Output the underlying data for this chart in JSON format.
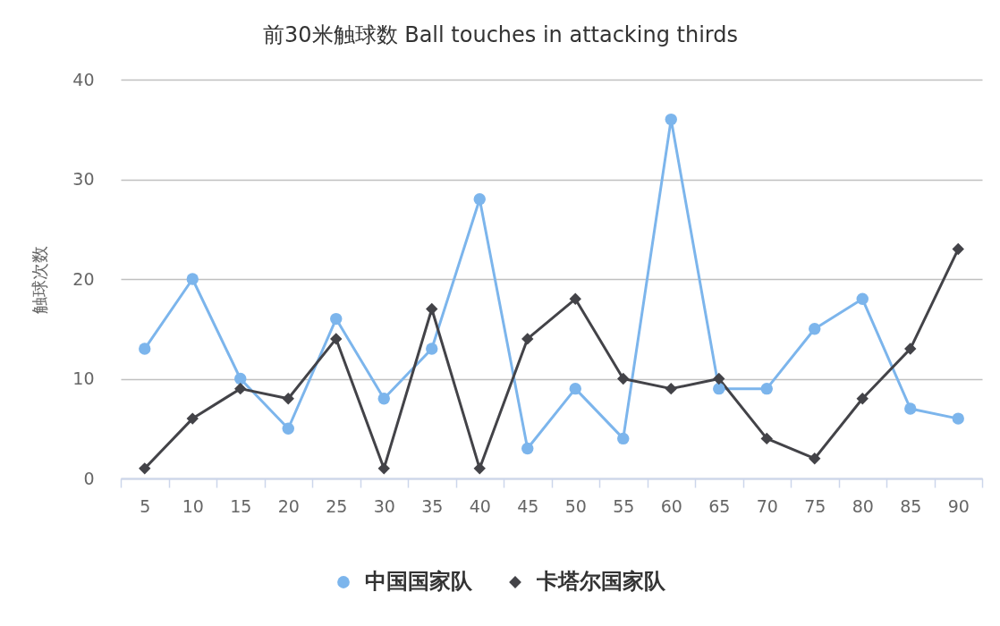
{
  "chart_data": {
    "type": "line",
    "title": "前30米触球数 Ball touches in attacking thirds",
    "ylabel": "触球次数",
    "categories": [
      "5",
      "10",
      "15",
      "20",
      "25",
      "30",
      "35",
      "40",
      "45",
      "50",
      "55",
      "60",
      "65",
      "70",
      "75",
      "80",
      "85",
      "90"
    ],
    "series": [
      {
        "name": "中国国家队",
        "color": "#7cb5ec",
        "marker": "circle",
        "values": [
          13,
          20,
          10,
          5,
          16,
          8,
          13,
          28,
          3,
          9,
          4,
          36,
          9,
          9,
          15,
          18,
          7,
          6
        ]
      },
      {
        "name": "卡塔尔国家队",
        "color": "#434348",
        "marker": "diamond",
        "values": [
          1,
          6,
          9,
          8,
          14,
          1,
          17,
          1,
          14,
          18,
          10,
          9,
          10,
          4,
          2,
          8,
          13,
          23
        ]
      }
    ],
    "ylim": [
      0,
      40
    ],
    "yticks": [
      0,
      10,
      20,
      30,
      40
    ],
    "grid": "y",
    "legend": "bottom",
    "line_style": "solid"
  }
}
